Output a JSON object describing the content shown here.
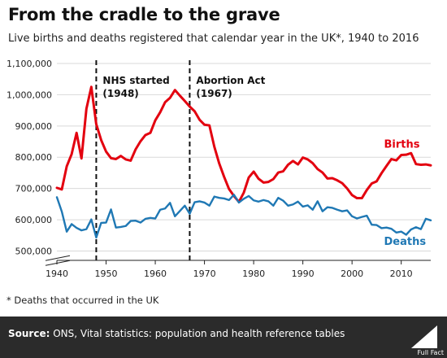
{
  "header": {
    "title": "From the cradle to the grave",
    "subtitle": "Live births and deaths registered that calendar year in the UK*, 1940 to 2016"
  },
  "footnote": "* Deaths that occurred in the UK",
  "footer": {
    "source_label": "Source:",
    "source_text": "ONS, Vital statistics: population and health reference tables",
    "logo_text": "Full Fact"
  },
  "colors": {
    "births": "#e3000f",
    "deaths": "#1f78b4",
    "annotation": "#111111",
    "footer_bg": "#2b2b2b"
  },
  "chart_data": {
    "type": "line",
    "xlim": [
      1940,
      2016
    ],
    "ylim": [
      470000,
      1100000
    ],
    "y_ticks": [
      500000,
      600000,
      700000,
      800000,
      900000,
      1000000,
      1100000
    ],
    "y_tick_labels": [
      "500,000",
      "600,000",
      "700,000",
      "800,000",
      "900,000",
      "1,000,000",
      "1,100,000"
    ],
    "x_ticks": [
      1940,
      1950,
      1960,
      1970,
      1980,
      1990,
      2000,
      2010
    ],
    "x_tick_labels": [
      "1940",
      "1950",
      "1960",
      "1970",
      "1980",
      "1990",
      "2000",
      "2010"
    ],
    "axis_break": true,
    "grid": true,
    "annotations": [
      {
        "x": 1948,
        "line1": "NHS started",
        "line2": "(1948)"
      },
      {
        "x": 1967,
        "line1": "Abortion Act",
        "line2": "(1967)"
      }
    ],
    "series": [
      {
        "name": "Births",
        "x": [
          1940,
          1941,
          1942,
          1943,
          1944,
          1945,
          1946,
          1947,
          1948,
          1949,
          1950,
          1951,
          1952,
          1953,
          1954,
          1955,
          1956,
          1957,
          1958,
          1959,
          1960,
          1961,
          1962,
          1963,
          1964,
          1965,
          1966,
          1967,
          1968,
          1969,
          1970,
          1971,
          1972,
          1973,
          1974,
          1975,
          1976,
          1977,
          1978,
          1979,
          1980,
          1981,
          1982,
          1983,
          1984,
          1985,
          1986,
          1987,
          1988,
          1989,
          1990,
          1991,
          1992,
          1993,
          1994,
          1995,
          1996,
          1997,
          1998,
          1999,
          2000,
          2001,
          2002,
          2003,
          2004,
          2005,
          2006,
          2007,
          2008,
          2009,
          2010,
          2011,
          2012,
          2013,
          2014,
          2015,
          2016
        ],
        "values": [
          702000,
          697000,
          771000,
          810000,
          878000,
          796000,
          955000,
          1025000,
          906000,
          855000,
          818000,
          797000,
          794000,
          804000,
          793000,
          789000,
          825000,
          851000,
          871000,
          878000,
          918000,
          944000,
          976000,
          990000,
          1015000,
          997000,
          980000,
          962000,
          947000,
          920000,
          904000,
          902000,
          834000,
          780000,
          737000,
          698000,
          676000,
          657000,
          687000,
          735000,
          754000,
          731000,
          719000,
          721000,
          730000,
          751000,
          755000,
          776000,
          788000,
          777000,
          799000,
          793000,
          781000,
          762000,
          751000,
          732000,
          733000,
          726000,
          717000,
          700000,
          679000,
          669000,
          669000,
          695000,
          716000,
          723000,
          749000,
          772000,
          794000,
          790000,
          807000,
          808000,
          813000,
          778000,
          776000,
          777000,
          774000
        ]
      },
      {
        "name": "Deaths",
        "x": [
          1940,
          1941,
          1942,
          1943,
          1944,
          1945,
          1946,
          1947,
          1948,
          1949,
          1950,
          1951,
          1952,
          1953,
          1954,
          1955,
          1956,
          1957,
          1958,
          1959,
          1960,
          1961,
          1962,
          1963,
          1964,
          1965,
          1966,
          1967,
          1968,
          1969,
          1970,
          1971,
          1972,
          1973,
          1974,
          1975,
          1976,
          1977,
          1978,
          1979,
          1980,
          1981,
          1982,
          1983,
          1984,
          1985,
          1986,
          1987,
          1988,
          1989,
          1990,
          1991,
          1992,
          1993,
          1994,
          1995,
          1996,
          1997,
          1998,
          1999,
          2000,
          2001,
          2002,
          2003,
          2004,
          2005,
          2006,
          2007,
          2008,
          2009,
          2010,
          2011,
          2012,
          2013,
          2014,
          2015,
          2016
        ],
        "values": [
          672000,
          626000,
          562000,
          586000,
          574000,
          566000,
          570000,
          601000,
          543000,
          590000,
          591000,
          633000,
          575000,
          577000,
          580000,
          596000,
          597000,
          591000,
          603000,
          606000,
          604000,
          632000,
          636000,
          654000,
          611000,
          628000,
          645000,
          619000,
          656000,
          659000,
          655000,
          645000,
          674000,
          670000,
          668000,
          663000,
          680000,
          655000,
          667000,
          676000,
          662000,
          658000,
          663000,
          659000,
          645000,
          670000,
          661000,
          645000,
          649000,
          658000,
          642000,
          646000,
          632000,
          659000,
          627000,
          640000,
          638000,
          632000,
          627000,
          630000,
          611000,
          604000,
          609000,
          613000,
          584000,
          583000,
          573000,
          575000,
          571000,
          559000,
          562000,
          552000,
          569000,
          576000,
          570000,
          603000,
          598000
        ]
      }
    ],
    "series_labels": [
      "Births",
      "Deaths"
    ]
  }
}
